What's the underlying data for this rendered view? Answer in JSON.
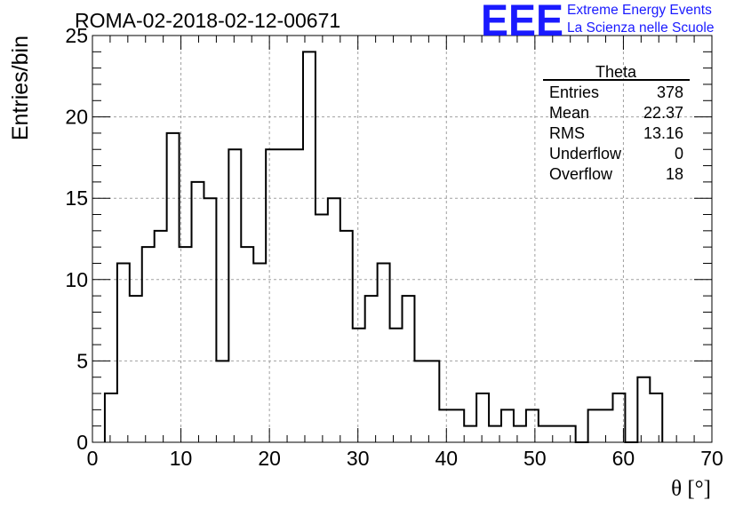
{
  "header": {
    "title": "ROMA-02-2018-02-12-00671",
    "logo_letters": "EEE",
    "logo_line1": "Extreme Energy Events",
    "logo_line2": "La Scienza nelle Scuole",
    "logo_color": "#1a1aff"
  },
  "stats": {
    "title": "Theta",
    "rows": [
      {
        "label": "Entries",
        "value": "378"
      },
      {
        "label": "Mean",
        "value": "22.37"
      },
      {
        "label": "RMS",
        "value": "13.16"
      },
      {
        "label": "Underflow",
        "value": "0"
      },
      {
        "label": "Overflow",
        "value": "18"
      }
    ]
  },
  "chart_data": {
    "type": "histogram",
    "title": "ROMA-02-2018-02-12-00671",
    "xlabel": "θ [°]",
    "ylabel": "Entries/bin",
    "xlim": [
      0,
      70
    ],
    "ylim": [
      0,
      25
    ],
    "x_ticks": [
      0,
      10,
      20,
      30,
      40,
      50,
      60,
      70
    ],
    "y_ticks": [
      0,
      5,
      10,
      15,
      20,
      25
    ],
    "grid": true,
    "bin_width": 1.4,
    "bin_edges_start": 1.4,
    "counts": [
      3,
      11,
      9,
      12,
      13,
      19,
      12,
      16,
      15,
      5,
      18,
      12,
      11,
      18,
      18,
      18,
      24,
      14,
      15,
      13,
      7,
      9,
      11,
      7,
      9,
      5,
      5,
      2,
      2,
      1,
      3,
      1,
      2,
      1,
      2,
      1,
      1,
      1,
      0,
      2,
      2,
      3,
      0,
      4,
      3
    ],
    "line_color": "#000000"
  }
}
